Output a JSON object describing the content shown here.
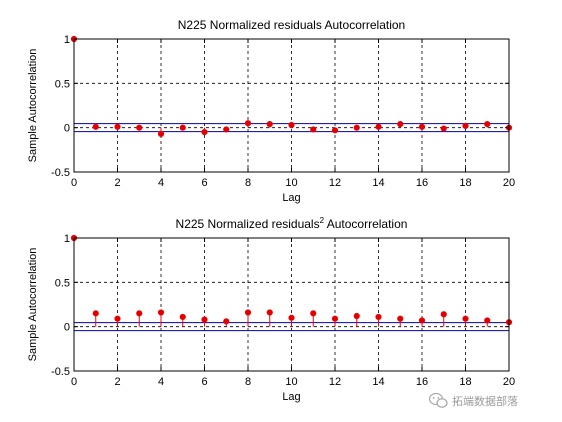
{
  "chart_data": [
    {
      "type": "stem",
      "title": "N225 Normalized residuals Autocorrelation",
      "title_suffix": "",
      "xlabel": "Lag",
      "ylabel": "Sample Autocorrelation",
      "xlim": [
        0,
        20
      ],
      "ylim": [
        -0.5,
        1
      ],
      "xticks": [
        0,
        2,
        4,
        6,
        8,
        10,
        12,
        14,
        16,
        18,
        20
      ],
      "yticks": [
        -0.5,
        0,
        0.5,
        1
      ],
      "grid": true,
      "confidence_bounds": [
        0.045,
        -0.045
      ],
      "lags": [
        0,
        1,
        2,
        3,
        4,
        5,
        6,
        7,
        8,
        9,
        10,
        11,
        12,
        13,
        14,
        15,
        16,
        17,
        18,
        19,
        20
      ],
      "values": [
        1.0,
        0.01,
        0.01,
        0.0,
        -0.07,
        0.0,
        -0.05,
        -0.02,
        0.05,
        0.04,
        0.03,
        -0.02,
        -0.03,
        0.0,
        0.01,
        0.04,
        0.01,
        -0.01,
        0.02,
        0.04,
        0.0
      ],
      "colors": {
        "stem": "#ff0000",
        "marker": "#e00000",
        "bounds": "#0000b0"
      }
    },
    {
      "type": "stem",
      "title": "N225 Normalized residuals",
      "title_suffix": " Autocorrelation",
      "title_superscript": "2",
      "xlabel": "Lag",
      "ylabel": "Sample Autocorrelation",
      "xlim": [
        0,
        20
      ],
      "ylim": [
        -0.5,
        1
      ],
      "xticks": [
        0,
        2,
        4,
        6,
        8,
        10,
        12,
        14,
        16,
        18,
        20
      ],
      "yticks": [
        -0.5,
        0,
        0.5,
        1
      ],
      "grid": true,
      "confidence_bounds": [
        0.045,
        -0.045
      ],
      "lags": [
        0,
        1,
        2,
        3,
        4,
        5,
        6,
        7,
        8,
        9,
        10,
        11,
        12,
        13,
        14,
        15,
        16,
        17,
        18,
        19,
        20
      ],
      "values": [
        1.0,
        0.15,
        0.09,
        0.15,
        0.16,
        0.11,
        0.08,
        0.06,
        0.16,
        0.16,
        0.1,
        0.15,
        0.09,
        0.12,
        0.11,
        0.09,
        0.07,
        0.14,
        0.09,
        0.07,
        0.05
      ],
      "colors": {
        "stem": "#ff0000",
        "marker": "#e00000",
        "bounds": "#0000b0"
      }
    }
  ],
  "watermark": {
    "text": "拓端数据部落",
    "icon": "wechat-icon"
  }
}
